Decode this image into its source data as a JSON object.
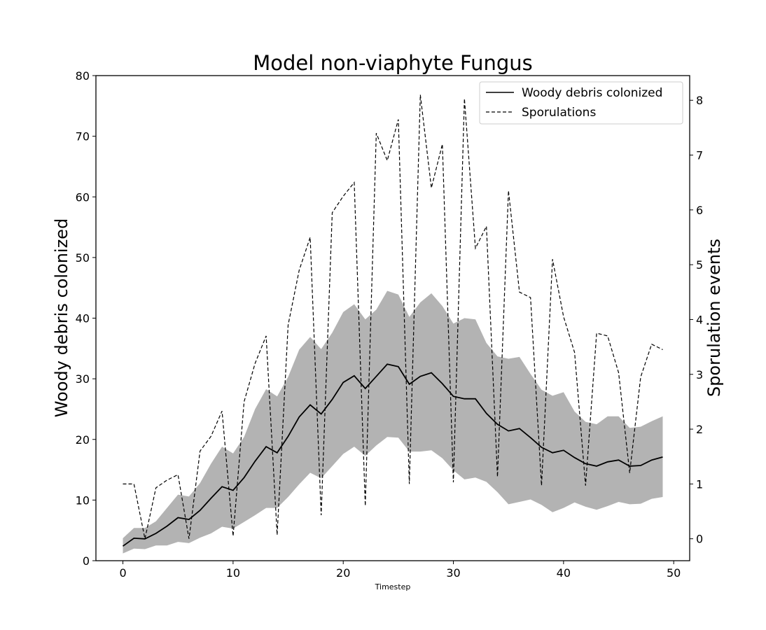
{
  "chart_data": {
    "type": "line",
    "title": "Model non-viaphyte Fungus",
    "xlabel": "Timestep",
    "ylabel": "Woody debris colonized",
    "y2label": "Sporulation events",
    "xlim": [
      -2.45,
      51.45
    ],
    "ylim": [
      0,
      80
    ],
    "y2lim": [
      -0.4,
      8.45
    ],
    "xticks": [
      0,
      10,
      20,
      30,
      40,
      50
    ],
    "yticks": [
      0,
      10,
      20,
      30,
      40,
      50,
      60,
      70,
      80
    ],
    "y2ticks": [
      0,
      1,
      2,
      3,
      4,
      5,
      6,
      7,
      8
    ],
    "grid": false,
    "legend": "top-right",
    "colors": {
      "line": "#000000",
      "band": "#b3b3b3",
      "axes": "#000000"
    },
    "x": [
      0,
      1,
      2,
      3,
      4,
      5,
      6,
      7,
      8,
      9,
      10,
      11,
      12,
      13,
      14,
      15,
      16,
      17,
      18,
      19,
      20,
      21,
      22,
      23,
      24,
      25,
      26,
      27,
      28,
      29,
      30,
      31,
      32,
      33,
      34,
      35,
      36,
      37,
      38,
      39,
      40,
      41,
      42,
      43,
      44,
      45,
      46,
      47,
      48,
      49
    ],
    "series": [
      {
        "name": "Woody debris colonized",
        "axis": "left",
        "style": "solid",
        "values": [
          2.4,
          3.7,
          3.6,
          4.5,
          5.7,
          7.1,
          6.8,
          8.3,
          10.3,
          12.2,
          11.6,
          13.7,
          16.4,
          18.8,
          17.8,
          20.5,
          23.7,
          25.7,
          24.2,
          26.6,
          29.4,
          30.5,
          28.4,
          30.4,
          32.4,
          32.0,
          29.1,
          30.4,
          31.0,
          29.2,
          27.1,
          26.7,
          26.7,
          24.3,
          22.5,
          21.4,
          21.8,
          20.3,
          18.7,
          17.8,
          18.2,
          17.0,
          16.0,
          15.6,
          16.3,
          16.6,
          15.6,
          15.7,
          16.6,
          17.1
        ],
        "band_low": [
          1.2,
          2.0,
          1.9,
          2.5,
          2.5,
          3.1,
          2.9,
          3.8,
          4.5,
          5.6,
          5.3,
          6.4,
          7.5,
          8.7,
          8.7,
          10.5,
          12.6,
          14.5,
          13.6,
          15.6,
          17.6,
          18.8,
          17.3,
          19.0,
          20.4,
          20.3,
          18.0,
          18.0,
          18.2,
          16.9,
          14.9,
          13.4,
          13.7,
          13.0,
          11.3,
          9.3,
          9.7,
          10.1,
          9.2,
          8.0,
          8.7,
          9.6,
          8.9,
          8.4,
          9.0,
          9.7,
          9.3,
          9.4,
          10.2,
          10.5
        ],
        "band_high": [
          3.7,
          5.4,
          5.4,
          6.5,
          8.7,
          10.9,
          10.6,
          12.8,
          16.0,
          18.8,
          17.7,
          20.4,
          25.0,
          28.3,
          27.1,
          30.3,
          34.8,
          36.9,
          34.9,
          37.6,
          41.0,
          42.3,
          39.8,
          41.4,
          44.5,
          43.9,
          40.2,
          42.6,
          44.1,
          42.0,
          39.1,
          40.0,
          39.8,
          35.9,
          33.7,
          33.3,
          33.6,
          30.8,
          28.2,
          27.2,
          27.8,
          24.6,
          22.9,
          22.5,
          23.8,
          23.8,
          21.9,
          22.1,
          23.0,
          23.8
        ]
      },
      {
        "name": "Sporulations",
        "axis": "right",
        "style": "dashed",
        "values": [
          1.0,
          1.0,
          0.0,
          0.93,
          1.07,
          1.17,
          0.0,
          1.6,
          1.87,
          2.33,
          0.05,
          2.5,
          3.2,
          3.7,
          0.07,
          3.9,
          4.9,
          5.5,
          0.43,
          5.95,
          6.25,
          6.5,
          0.6,
          7.4,
          6.9,
          7.65,
          1.0,
          8.1,
          6.4,
          7.2,
          1.03,
          8.03,
          5.3,
          5.7,
          1.13,
          6.35,
          4.5,
          4.4,
          0.97,
          5.1,
          4.05,
          3.4,
          0.97,
          3.75,
          3.7,
          3.03,
          1.2,
          2.95,
          3.55,
          3.45
        ]
      }
    ]
  }
}
